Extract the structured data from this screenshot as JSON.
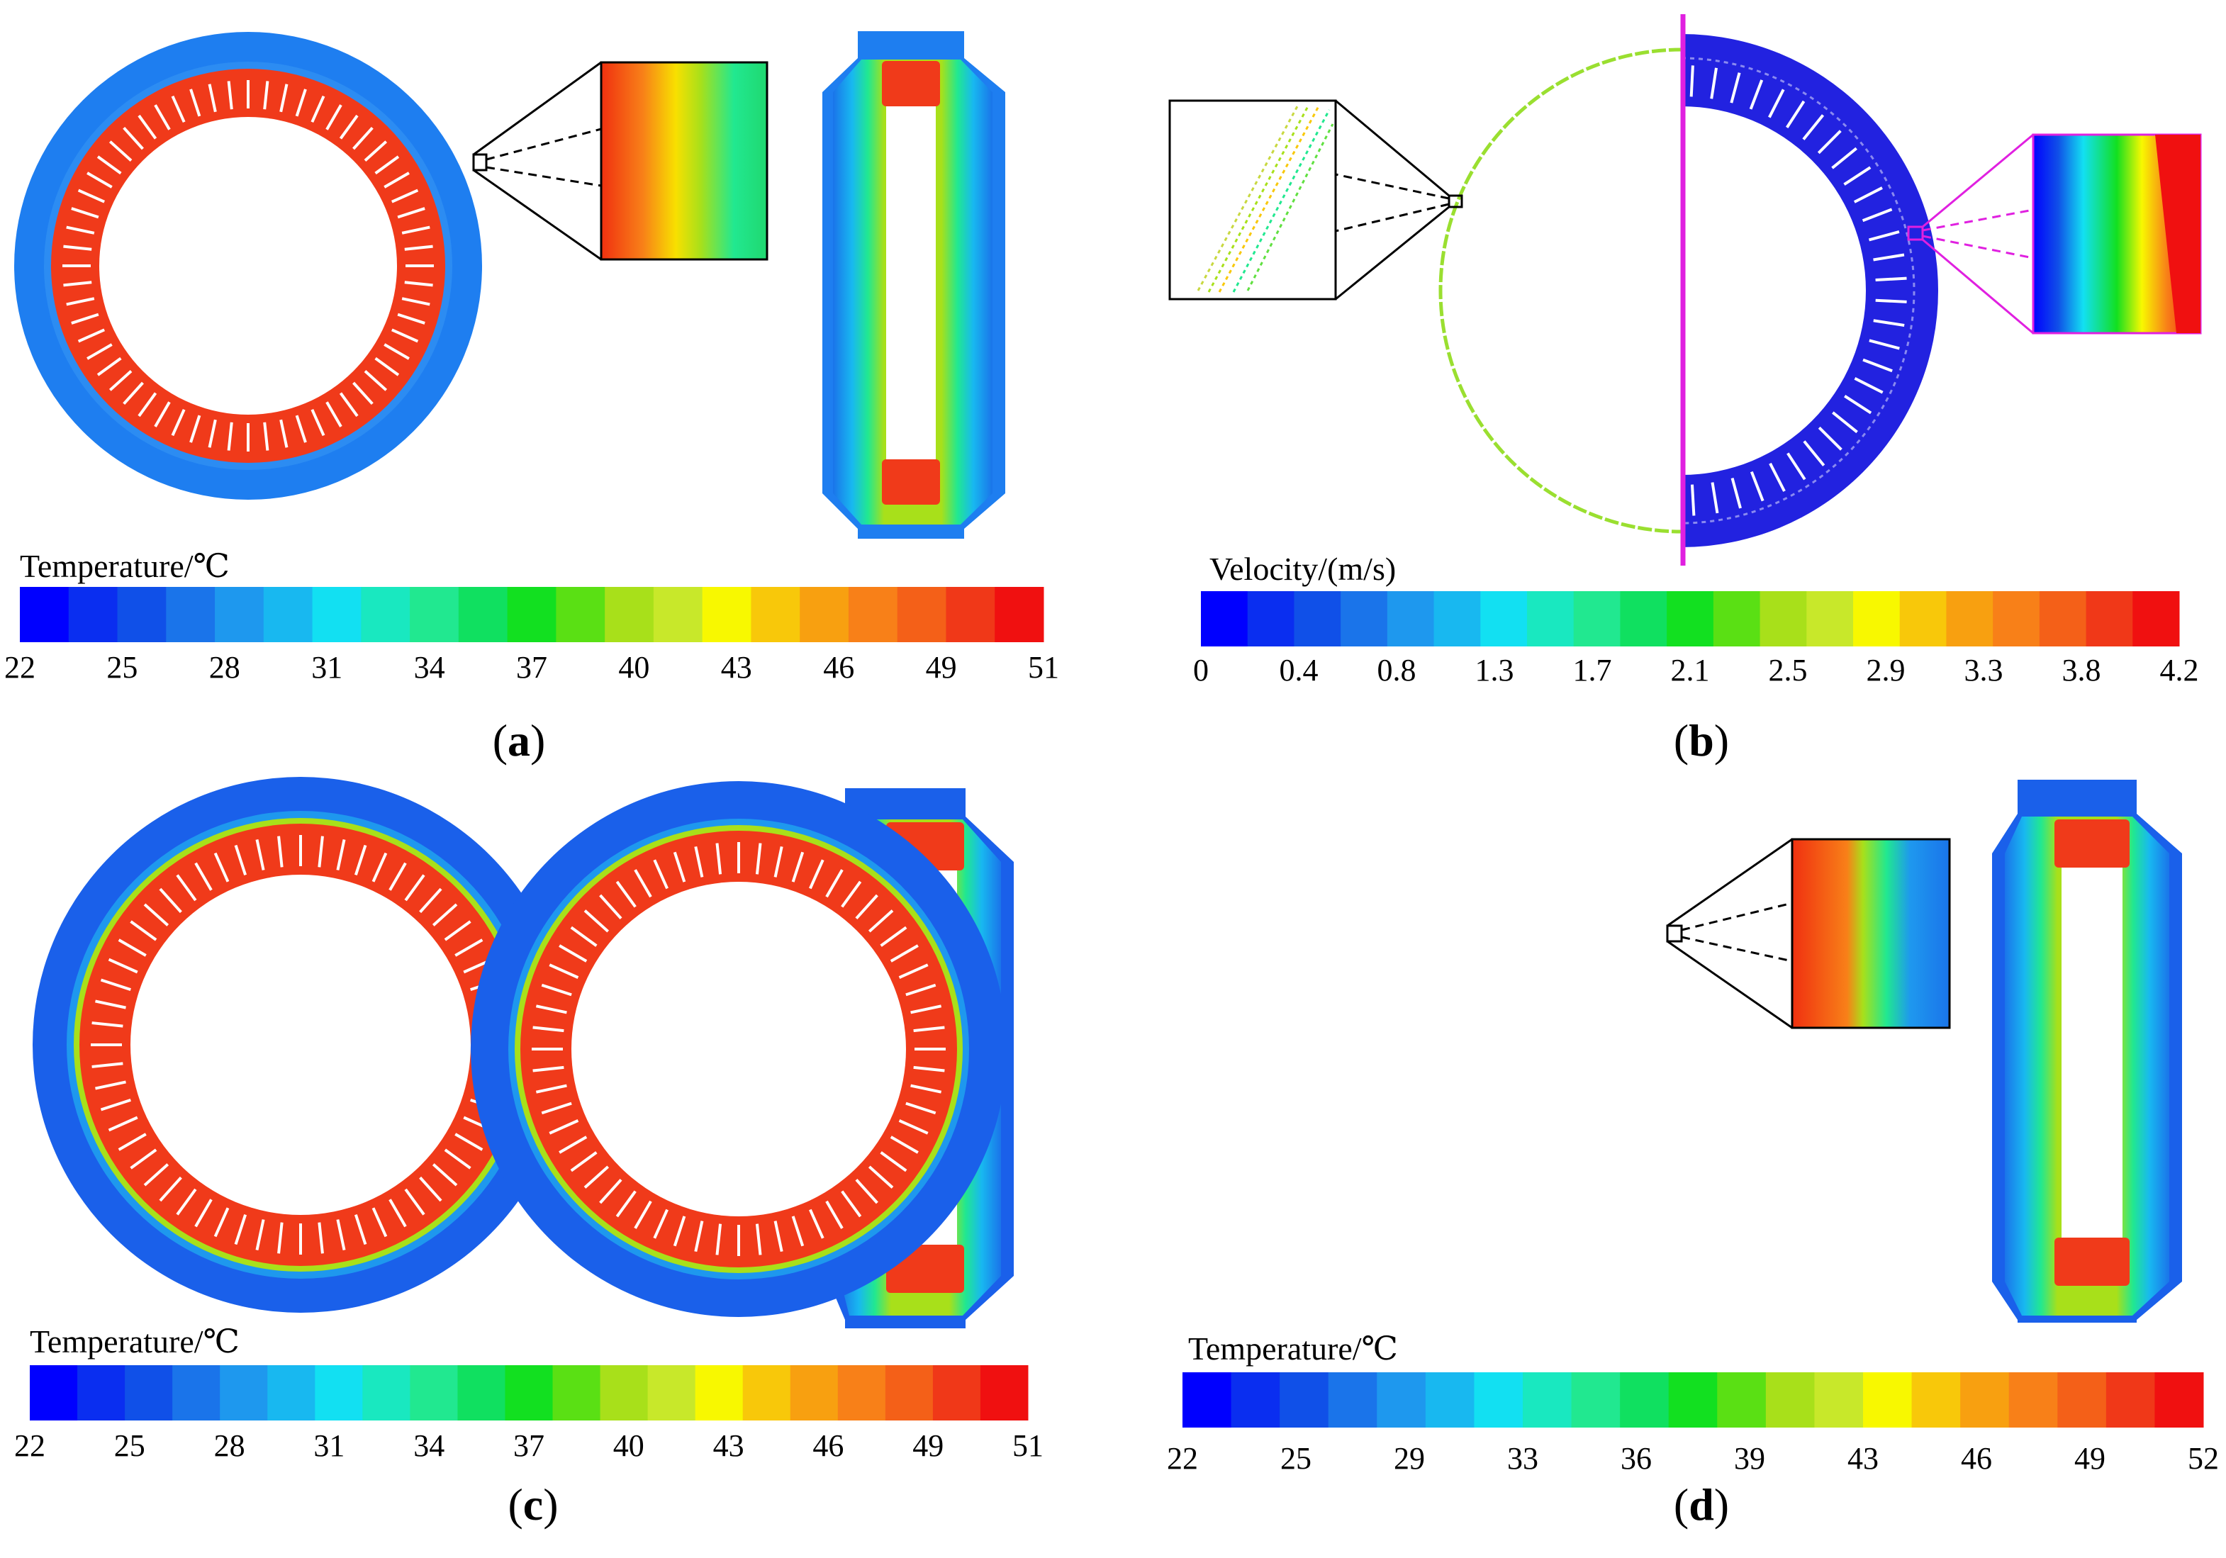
{
  "panels": {
    "a": {
      "label": "a",
      "colorbar_title": "Temperature/℃",
      "ticks": [
        "22",
        "25",
        "28",
        "31",
        "34",
        "37",
        "40",
        "43",
        "46",
        "49",
        "51"
      ]
    },
    "b": {
      "label": "b",
      "colorbar_title": "Velocity/(m/s)",
      "ticks": [
        "0",
        "0.4",
        "0.8",
        "1.3",
        "1.7",
        "2.1",
        "2.5",
        "2.9",
        "3.3",
        "3.8",
        "4.2"
      ]
    },
    "c": {
      "label": "c",
      "colorbar_title": "Temperature/℃",
      "ticks": [
        "22",
        "25",
        "28",
        "31",
        "34",
        "37",
        "40",
        "43",
        "46",
        "49",
        "51"
      ]
    },
    "d": {
      "label": "d",
      "colorbar_title": "Temperature/℃",
      "ticks": [
        "22",
        "25",
        "29",
        "33",
        "36",
        "39",
        "43",
        "46",
        "49",
        "52"
      ]
    }
  },
  "colormap": [
    "#0000ff",
    "#0a2ef0",
    "#1050e8",
    "#1a74ea",
    "#1e98ee",
    "#18b8f0",
    "#12e0f2",
    "#19e8c0",
    "#21e890",
    "#10e060",
    "#12e020",
    "#5ae014",
    "#a8e01a",
    "#c8e82a",
    "#f8f800",
    "#f8c80a",
    "#f8a010",
    "#f88018",
    "#f46018",
    "#f03818",
    "#f01010"
  ],
  "colors": {
    "temp_hot": "#f03a1a",
    "temp_cool": "#1e5ef0",
    "temp_mid": "#a8e02a",
    "air": "#2222e0",
    "magenta": "#e020e0"
  }
}
